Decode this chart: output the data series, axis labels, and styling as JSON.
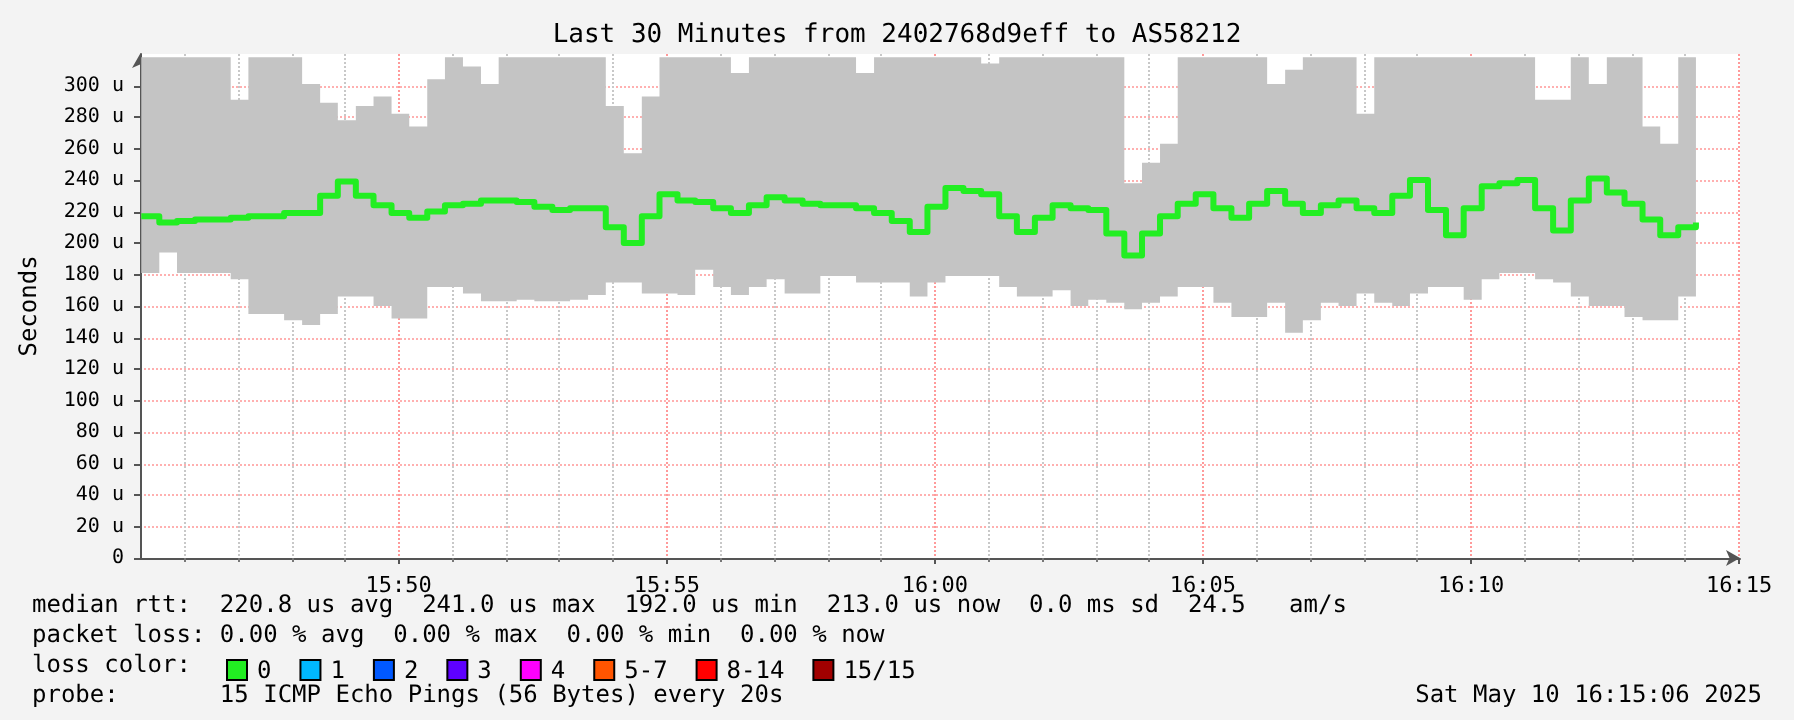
{
  "chart_data": {
    "type": "step",
    "title": "Last 30 Minutes from 2402768d9eff to AS58212",
    "ylabel": "Seconds",
    "x": [
      15.7533,
      15.7589,
      15.7644,
      15.77,
      15.7755,
      15.7811,
      15.7866,
      15.7922,
      15.7977,
      15.8033,
      15.8089,
      15.8144,
      15.82,
      15.8255,
      15.8311,
      15.8366,
      15.8422,
      15.8477,
      15.8533,
      15.8589,
      15.8644,
      15.87,
      15.8755,
      15.8811,
      15.8866,
      15.8922,
      15.8977,
      15.9033,
      15.9089,
      15.9144,
      15.92,
      15.9255,
      15.9311,
      15.9366,
      15.9422,
      15.9477,
      15.9533,
      15.9589,
      15.9644,
      15.97,
      15.9755,
      15.9811,
      15.9866,
      15.9922,
      15.9977,
      16.0033,
      16.0089,
      16.0144,
      16.02,
      16.0255,
      16.0311,
      16.0366,
      16.0422,
      16.0477,
      16.0533,
      16.0589,
      16.0644,
      16.07,
      16.0755,
      16.0811,
      16.0866,
      16.0922,
      16.0977,
      16.1033,
      16.1089,
      16.1144,
      16.12,
      16.1255,
      16.1311,
      16.1366,
      16.1422,
      16.1477,
      16.1533,
      16.1589,
      16.1644,
      16.17,
      16.1755,
      16.1811,
      16.1866,
      16.1922,
      16.1977,
      16.2033,
      16.2089,
      16.2144,
      16.22,
      16.2255,
      16.2311,
      16.2366
    ],
    "series": [
      {
        "name": "0",
        "color": "#22ee22",
        "values": [
          217,
          213,
          214,
          215,
          215,
          216,
          217,
          217,
          219,
          219,
          230,
          239,
          230,
          224,
          219,
          216,
          220,
          224,
          225,
          227,
          227,
          226,
          223,
          221,
          222,
          222,
          210,
          200,
          217,
          231,
          227,
          226,
          222,
          219,
          224,
          229,
          227,
          225,
          224,
          224,
          222,
          219,
          214,
          207,
          223,
          235,
          233,
          231,
          217,
          207,
          216,
          224,
          222,
          221,
          206,
          192,
          206,
          217,
          225,
          231,
          222,
          216,
          225,
          233,
          225,
          219,
          224,
          227,
          222,
          219,
          230,
          240,
          221,
          205,
          222,
          236,
          238,
          240,
          222,
          208,
          227,
          241,
          232,
          225,
          215,
          205,
          210,
          213
        ],
        "lower": [
          181,
          194,
          181,
          181,
          181,
          177,
          155,
          155,
          151,
          148,
          155,
          166,
          166,
          160,
          152,
          152,
          172,
          172,
          168,
          163,
          163,
          164,
          163,
          163,
          164,
          167,
          175,
          175,
          168,
          168,
          167,
          183,
          172,
          167,
          172,
          177,
          168,
          168,
          179,
          179,
          175,
          175,
          175,
          166,
          175,
          179,
          179,
          179,
          172,
          166,
          166,
          170,
          160,
          164,
          162,
          158,
          162,
          166,
          172,
          172,
          162,
          153,
          153,
          162,
          143,
          151,
          162,
          160,
          168,
          162,
          160,
          168,
          172,
          172,
          164,
          177,
          181,
          181,
          177,
          175,
          166,
          160,
          160,
          153,
          151,
          151,
          166,
          179
        ],
        "upper": [
          318,
          318,
          318,
          318,
          318,
          291,
          318,
          318,
          318,
          301,
          289,
          278,
          287,
          293,
          282,
          274,
          304,
          318,
          312,
          301,
          318,
          318,
          318,
          318,
          318,
          318,
          287,
          257,
          293,
          318,
          318,
          318,
          318,
          308,
          318,
          318,
          318,
          318,
          318,
          318,
          308,
          318,
          318,
          318,
          318,
          318,
          318,
          314,
          318,
          318,
          318,
          318,
          318,
          318,
          318,
          238,
          251,
          263,
          318,
          318,
          318,
          318,
          318,
          301,
          310,
          318,
          318,
          318,
          282,
          318,
          318,
          318,
          318,
          318,
          318,
          318,
          318,
          318,
          291,
          291,
          318,
          301,
          318,
          318,
          274,
          263,
          318,
          318
        ]
      },
      {
        "name": "1",
        "color": "#00b8ff",
        "values": [
          null,
          null,
          null,
          null,
          null,
          null,
          null,
          null,
          null,
          null,
          null,
          null,
          null,
          null,
          null,
          null,
          null,
          null,
          null,
          null,
          null,
          null,
          null,
          null,
          null,
          null,
          null,
          null,
          null,
          null,
          null,
          null,
          null,
          null,
          null,
          null,
          null,
          null,
          null,
          null,
          null,
          null,
          null,
          null,
          null,
          null,
          null,
          null,
          null,
          null,
          null,
          null,
          null,
          null,
          null,
          null,
          null,
          null,
          null,
          null,
          null,
          null,
          null,
          null,
          null,
          null,
          null,
          null,
          null,
          null,
          null,
          null,
          null,
          null,
          null,
          null,
          null,
          null,
          null,
          null,
          null,
          null,
          null,
          null,
          null,
          null,
          null,
          null
        ]
      },
      {
        "name": "2",
        "color": "#0059ff",
        "values": [
          null,
          null,
          null,
          null,
          null,
          null,
          null,
          null,
          null,
          null,
          null,
          null,
          null,
          null,
          null,
          null,
          null,
          null,
          null,
          null,
          null,
          null,
          null,
          null,
          null,
          null,
          null,
          null,
          null,
          null,
          null,
          null,
          null,
          null,
          null,
          null,
          null,
          null,
          null,
          null,
          null,
          null,
          null,
          null,
          null,
          null,
          null,
          null,
          null,
          null,
          null,
          null,
          null,
          null,
          null,
          null,
          null,
          null,
          null,
          null,
          null,
          null,
          null,
          null,
          null,
          null,
          null,
          null,
          null,
          null,
          null,
          null,
          null,
          null,
          null,
          null,
          null,
          null,
          null,
          null,
          null,
          null,
          null,
          null,
          null,
          null,
          null,
          null
        ]
      },
      {
        "name": "3",
        "color": "#5e00ff",
        "values": [
          null,
          null,
          null,
          null,
          null,
          null,
          null,
          null,
          null,
          null,
          null,
          null,
          null,
          null,
          null,
          null,
          null,
          null,
          null,
          null,
          null,
          null,
          null,
          null,
          null,
          null,
          null,
          null,
          null,
          null,
          null,
          null,
          null,
          null,
          null,
          null,
          null,
          null,
          null,
          null,
          null,
          null,
          null,
          null,
          null,
          null,
          null,
          null,
          null,
          null,
          null,
          null,
          null,
          null,
          null,
          null,
          null,
          null,
          null,
          null,
          null,
          null,
          null,
          null,
          null,
          null,
          null,
          null,
          null,
          null,
          null,
          null,
          null,
          null,
          null,
          null,
          null,
          null,
          null,
          null,
          null,
          null,
          null,
          null,
          null,
          null,
          null,
          null
        ]
      },
      {
        "name": "4",
        "color": "#ff00ff",
        "values": [
          null,
          null,
          null,
          null,
          null,
          null,
          null,
          null,
          null,
          null,
          null,
          null,
          null,
          null,
          null,
          null,
          null,
          null,
          null,
          null,
          null,
          null,
          null,
          null,
          null,
          null,
          null,
          null,
          null,
          null,
          null,
          null,
          null,
          null,
          null,
          null,
          null,
          null,
          null,
          null,
          null,
          null,
          null,
          null,
          null,
          null,
          null,
          null,
          null,
          null,
          null,
          null,
          null,
          null,
          null,
          null,
          null,
          null,
          null,
          null,
          null,
          null,
          null,
          null,
          null,
          null,
          null,
          null,
          null,
          null,
          null,
          null,
          null,
          null,
          null,
          null,
          null,
          null,
          null,
          null,
          null,
          null,
          null,
          null,
          null,
          null,
          null,
          null
        ]
      },
      {
        "name": "5-7",
        "color": "#ff5500",
        "values": [
          null,
          null,
          null,
          null,
          null,
          null,
          null,
          null,
          null,
          null,
          null,
          null,
          null,
          null,
          null,
          null,
          null,
          null,
          null,
          null,
          null,
          null,
          null,
          null,
          null,
          null,
          null,
          null,
          null,
          null,
          null,
          null,
          null,
          null,
          null,
          null,
          null,
          null,
          null,
          null,
          null,
          null,
          null,
          null,
          null,
          null,
          null,
          null,
          null,
          null,
          null,
          null,
          null,
          null,
          null,
          null,
          null,
          null,
          null,
          null,
          null,
          null,
          null,
          null,
          null,
          null,
          null,
          null,
          null,
          null,
          null,
          null,
          null,
          null,
          null,
          null,
          null,
          null,
          null,
          null,
          null,
          null,
          null,
          null,
          null,
          null,
          null,
          null
        ]
      },
      {
        "name": "8-14",
        "color": "#ff0000",
        "values": [
          null,
          null,
          null,
          null,
          null,
          null,
          null,
          null,
          null,
          null,
          null,
          null,
          null,
          null,
          null,
          null,
          null,
          null,
          null,
          null,
          null,
          null,
          null,
          null,
          null,
          null,
          null,
          null,
          null,
          null,
          null,
          null,
          null,
          null,
          null,
          null,
          null,
          null,
          null,
          null,
          null,
          null,
          null,
          null,
          null,
          null,
          null,
          null,
          null,
          null,
          null,
          null,
          null,
          null,
          null,
          null,
          null,
          null,
          null,
          null,
          null,
          null,
          null,
          null,
          null,
          null,
          null,
          null,
          null,
          null,
          null,
          null,
          null,
          null,
          null,
          null,
          null,
          null,
          null,
          null,
          null,
          null,
          null,
          null,
          null,
          null,
          null,
          null
        ]
      },
      {
        "name": "15/15",
        "color": "#a10000",
        "values": [
          null,
          null,
          null,
          null,
          null,
          null,
          null,
          null,
          null,
          null,
          null,
          null,
          null,
          null,
          null,
          null,
          null,
          null,
          null,
          null,
          null,
          null,
          null,
          null,
          null,
          null,
          null,
          null,
          null,
          null,
          null,
          null,
          null,
          null,
          null,
          null,
          null,
          null,
          null,
          null,
          null,
          null,
          null,
          null,
          null,
          null,
          null,
          null,
          null,
          null,
          null,
          null,
          null,
          null,
          null,
          null,
          null,
          null,
          null,
          null,
          null,
          null,
          null,
          null,
          null,
          null,
          null,
          null,
          null,
          null,
          null,
          null,
          null,
          null,
          null,
          null,
          null,
          null,
          null,
          null,
          null,
          null,
          null,
          null,
          null,
          null,
          null,
          null
        ]
      }
    ],
    "xlim": [
      15.7529,
      16.2503
    ],
    "xticks": [
      {
        "value": 15.7667,
        "label": null
      },
      {
        "value": 15.7833,
        "label": null
      },
      {
        "value": 15.8,
        "label": null
      },
      {
        "value": 15.8167,
        "label": null
      },
      {
        "value": 15.8333,
        "label": "15:50"
      },
      {
        "value": 15.85,
        "label": null
      },
      {
        "value": 15.8667,
        "label": null
      },
      {
        "value": 15.8833,
        "label": null
      },
      {
        "value": 15.9,
        "label": null
      },
      {
        "value": 15.9167,
        "label": "15:55"
      },
      {
        "value": 15.9333,
        "label": null
      },
      {
        "value": 15.95,
        "label": null
      },
      {
        "value": 15.9667,
        "label": null
      },
      {
        "value": 15.9833,
        "label": null
      },
      {
        "value": 16,
        "label": "16:00"
      },
      {
        "value": 16.0167,
        "label": null
      },
      {
        "value": 16.0333,
        "label": null
      },
      {
        "value": 16.05,
        "label": null
      },
      {
        "value": 16.0667,
        "label": null
      },
      {
        "value": 16.0833,
        "label": "16:05"
      },
      {
        "value": 16.1,
        "label": null
      },
      {
        "value": 16.1167,
        "label": null
      },
      {
        "value": 16.1333,
        "label": null
      },
      {
        "value": 16.15,
        "label": null
      },
      {
        "value": 16.1667,
        "label": "16:10"
      },
      {
        "value": 16.1833,
        "label": null
      },
      {
        "value": 16.2,
        "label": null
      },
      {
        "value": 16.2167,
        "label": null
      },
      {
        "value": 16.2333,
        "label": null
      },
      {
        "value": 16.25,
        "label": "16:15"
      }
    ],
    "ylim": [
      0,
      320
    ],
    "yticks": [
      {
        "value": 0,
        "label": "0"
      },
      {
        "value": 20,
        "label": "20 u"
      },
      {
        "value": 40,
        "label": "40 u"
      },
      {
        "value": 60,
        "label": "60 u"
      },
      {
        "value": 80,
        "label": "80 u"
      },
      {
        "value": 100,
        "label": "100 u"
      },
      {
        "value": 120,
        "label": "120 u"
      },
      {
        "value": 140,
        "label": "140 u"
      },
      {
        "value": 160,
        "label": "160 u"
      },
      {
        "value": 180,
        "label": "180 u"
      },
      {
        "value": 200,
        "label": "200 u"
      },
      {
        "value": 220,
        "label": "220 u"
      },
      {
        "value": 240,
        "label": "240 u"
      },
      {
        "value": 260,
        "label": "260 u"
      },
      {
        "value": 280,
        "label": "280 u"
      },
      {
        "value": 300,
        "label": "300 u"
      }
    ],
    "grid": true,
    "legend": "bottom left",
    "annotations": [
      "median rtt:  220.8 us avg  241.0 us max  192.0 us min  213.0 us now  0.0 ms sd  24.5   am/s",
      "packet loss: 0.00 % avg  0.00 % max  0.00 % min  0.00 % now",
      "loss color:",
      "probe:       15 ICMP Echo Pings (56 Bytes) every 20s",
      "Sat May 10 16:15:06 2025"
    ]
  }
}
